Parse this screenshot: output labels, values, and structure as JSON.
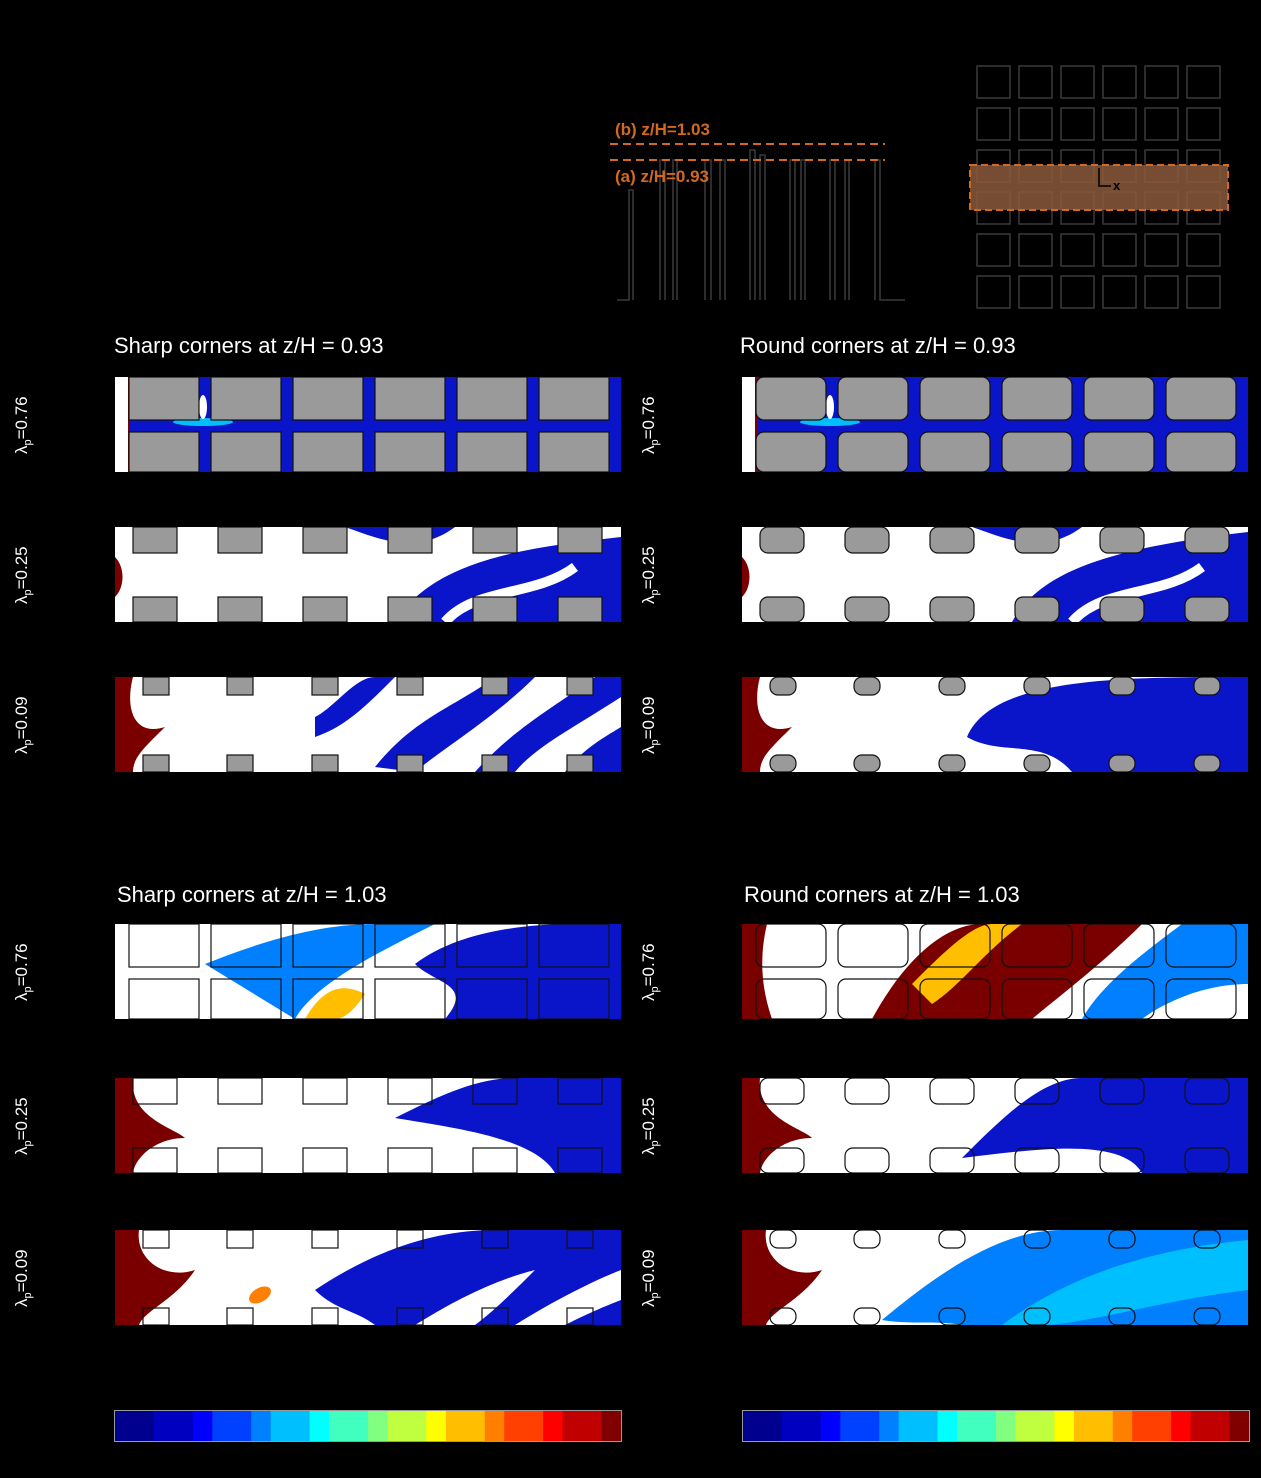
{
  "schematic": {
    "label_b": "(b) z/H=1.03",
    "label_a": "(a) z/H=0.93",
    "axis_x_label": "x",
    "orange": "#d2691e"
  },
  "sections": [
    {
      "id": "a",
      "sharp_title": "Sharp corners at z/H = 0.93",
      "round_title": "Round corners at z/H = 0.93"
    },
    {
      "id": "b",
      "sharp_title": "Sharp corners at z/H = 1.03",
      "round_title": "Round corners at z/H = 1.03"
    }
  ],
  "rows": [
    {
      "symbol": "λ",
      "subscript": "p",
      "value": "=0.76"
    },
    {
      "symbol": "λ",
      "subscript": "p",
      "value": "=0.25"
    },
    {
      "symbol": "λ",
      "subscript": "p",
      "value": "=0.09"
    }
  ],
  "colors": {
    "building_fill": "#9a9a9a",
    "flow_blue": "#0a14c8",
    "flow_red": "#7a0000",
    "colormap": [
      "#00008f",
      "#0000c0",
      "#0000ff",
      "#0040ff",
      "#0080ff",
      "#00bfff",
      "#00ffff",
      "#40ffbf",
      "#80ff80",
      "#bfff40",
      "#ffff00",
      "#ffbf00",
      "#ff8000",
      "#ff4000",
      "#ff0000",
      "#c00000",
      "#800000"
    ]
  }
}
